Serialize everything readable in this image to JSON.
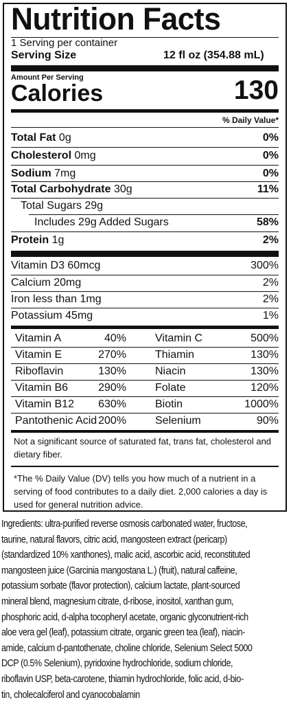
{
  "header": {
    "title": "Nutrition Facts",
    "servings_per_container": "1 Serving per container",
    "serving_size_label": "Serving Size",
    "serving_size_value": "12 fl oz (354.88 mL)"
  },
  "calories": {
    "amount_per_serving": "Amount Per Serving",
    "label": "Calories",
    "value": "130",
    "daily_value_header": "% Daily Value*"
  },
  "nutrients": [
    {
      "name": "Total Fat",
      "amount": " 0g",
      "dv": "0%",
      "bold": true
    },
    {
      "name": "Cholesterol",
      "amount": " 0mg",
      "dv": "0%",
      "bold": true
    },
    {
      "name": "Sodium",
      "amount": " 7mg",
      "dv": "0%",
      "bold": true
    },
    {
      "name": "Total Carbohydrate",
      "amount": " 30g",
      "dv": "11%",
      "bold": true
    },
    {
      "name": "Total Sugars 29g",
      "amount": "",
      "dv": "",
      "bold": false
    },
    {
      "name": "Includes 29g Added Sugars",
      "amount": "",
      "dv": "58%",
      "bold": false
    },
    {
      "name": "Protein",
      "amount": " 1g",
      "dv": "2%",
      "bold": true
    }
  ],
  "vitamins_main": [
    {
      "label": "Vitamin D3 60mcg",
      "dv": "300%"
    },
    {
      "label": "Calcium 20mg",
      "dv": "2%"
    },
    {
      "label": "Iron less than 1mg",
      "dv": "2%"
    },
    {
      "label": "Potassium 45mg",
      "dv": "1%"
    }
  ],
  "vitamins_grid": [
    {
      "l_name": "Vitamin A",
      "l_dv": "40%",
      "r_name": "Vitamin C",
      "r_dv": "500%"
    },
    {
      "l_name": "Vitamin E",
      "l_dv": "270%",
      "r_name": "Thiamin",
      "r_dv": "130%"
    },
    {
      "l_name": "Riboflavin",
      "l_dv": "130%",
      "r_name": "Niacin",
      "r_dv": "130%"
    },
    {
      "l_name": "Vitamin B6",
      "l_dv": "290%",
      "r_name": "Folate",
      "r_dv": "120%"
    },
    {
      "l_name": "Vitamin B12",
      "l_dv": "630%",
      "r_name": "Biotin",
      "r_dv": "1000%"
    },
    {
      "l_name": "Pantothenic Acid",
      "l_dv": "200%",
      "r_name": "Selenium",
      "r_dv": "90%"
    }
  ],
  "footnotes": {
    "not_significant": "Not a significant source of saturated fat, trans fat, cholesterol and dietary fiber.",
    "daily_value_note": "*The % Daily Value (DV) tells you how much of a nutrient in a serving of food contributes to a daily diet. 2,000 calories a day is used for general nutrition advice."
  },
  "ingredients": [
    "Ingredients: ultra-purified reverse osmosis carbonated water, fructose,",
    "taurine, natural flavors, citric acid, mangosteen extract (pericarp)",
    "(standardized 10% xanthones), malic acid, ascorbic acid, reconstituted",
    "mangosteen juice (Garcinia mangostana L.) (fruit), natural caffeine,",
    "potassium sorbate (flavor protection), calcium lactate, plant-sourced",
    "mineral blend, magnesium citrate, d-ribose, inositol, xanthan gum,",
    "phosphoric acid, d-alpha tocopheryl acetate, organic glyconutrient-rich",
    "aloe vera gel (leaf), potassium citrate, organic green tea (leaf), niacin-",
    "amide, calcium d-pantothenate, choline chloride, Selenium Select 5000",
    "DCP (0.5% Selenium), pyridoxine hydrochloride, sodium chloride,",
    "riboflavin USP, beta-carotene, thiamin hydrochloride, folic acid, d-bio-",
    "tin, cholecalciferol and cyanocobalamin"
  ]
}
